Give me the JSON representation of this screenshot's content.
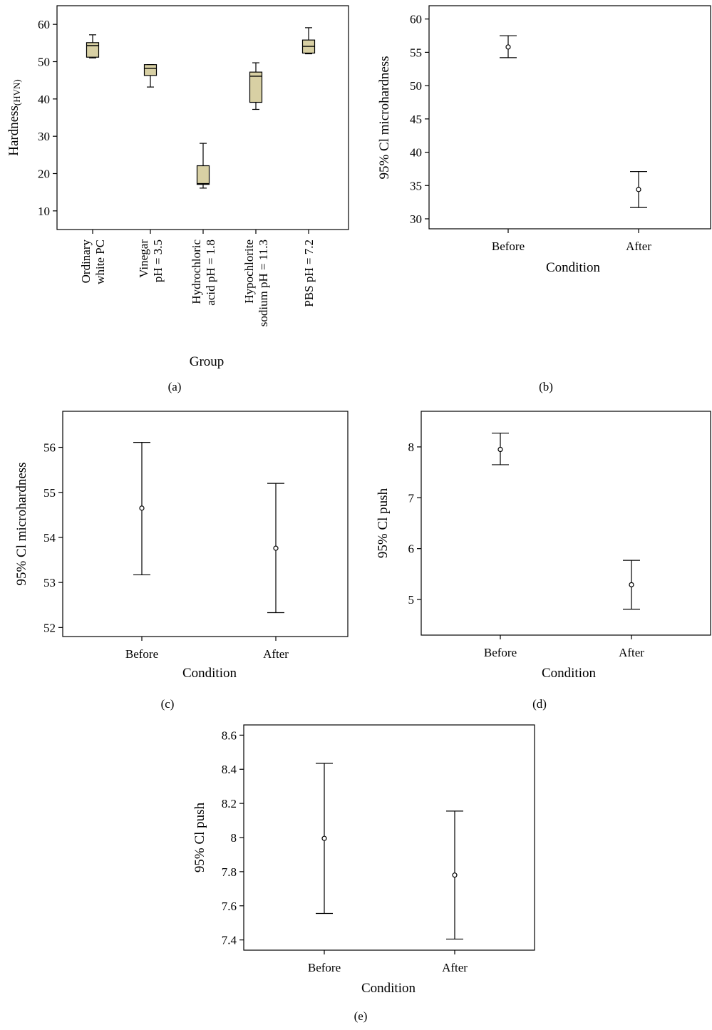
{
  "chart_data": [
    {
      "panel": "(a)",
      "type": "box",
      "xlabel": "Group",
      "ylabel_main": "Hardness",
      "ylabel_sub": "(HVN)",
      "ylim": [
        5,
        65
      ],
      "yticks": [
        10,
        20,
        30,
        40,
        50,
        60
      ],
      "categories": [
        [
          "Ordinary",
          "white PC"
        ],
        [
          "Vinegar",
          "pH = 3.5"
        ],
        [
          "Hydrochloric",
          "acid pH = 1.8"
        ],
        [
          "Hypochlorite",
          "sodium pH = 11.3"
        ],
        [
          "PBS pH = 7.2"
        ]
      ],
      "boxes": [
        {
          "min": 51,
          "q1": 51.2,
          "median": 54.3,
          "q3": 55.1,
          "max": 57.2
        },
        {
          "min": 43.2,
          "q1": 46.3,
          "median": 48.2,
          "q3": 49.2,
          "max": 49.2
        },
        {
          "min": 16.1,
          "q1": 17.1,
          "median": 17.3,
          "q3": 22.1,
          "max": 28.1
        },
        {
          "min": 37.2,
          "q1": 39.1,
          "median": 46.1,
          "q3": 47.2,
          "max": 49.7
        },
        {
          "min": 52.1,
          "q1": 52.3,
          "median": 54.1,
          "q3": 55.8,
          "max": 59.1
        }
      ],
      "box_color": "#d8d0a4"
    },
    {
      "panel": "(b)",
      "type": "errorbar",
      "xlabel": "Condition",
      "ylabel": "95% Cl microhardness",
      "ylim": [
        28.5,
        62
      ],
      "yticks": [
        30,
        35,
        40,
        45,
        50,
        55,
        60
      ],
      "categories": [
        "Before",
        "After"
      ],
      "means": [
        55.8,
        34.4
      ],
      "lower": [
        54.2,
        31.7
      ],
      "upper": [
        57.5,
        37.1
      ]
    },
    {
      "panel": "(c)",
      "type": "errorbar",
      "xlabel": "Condition",
      "ylabel": "95% Cl microhardness",
      "ylim": [
        51.8,
        56.8
      ],
      "yticks": [
        52,
        53,
        54,
        55,
        56
      ],
      "categories": [
        "Before",
        "After"
      ],
      "means": [
        54.65,
        53.76
      ],
      "lower": [
        53.17,
        52.33
      ],
      "upper": [
        56.11,
        55.2
      ]
    },
    {
      "panel": "(d)",
      "type": "errorbar",
      "xlabel": "Condition",
      "ylabel": "95% Cl push",
      "ylim": [
        4.3,
        8.7
      ],
      "yticks": [
        5,
        6,
        7,
        8
      ],
      "categories": [
        "Before",
        "After"
      ],
      "means": [
        7.95,
        5.29
      ],
      "lower": [
        7.65,
        4.81
      ],
      "upper": [
        8.27,
        5.77
      ]
    },
    {
      "panel": "(e)",
      "type": "errorbar",
      "xlabel": "Condition",
      "ylabel": "95% Cl push",
      "ylim": [
        7.34,
        8.66
      ],
      "yticks": [
        "7.4",
        "7.6",
        "7.8",
        "8",
        "8.2",
        "8.4",
        "8.6"
      ],
      "categories": [
        "Before",
        "After"
      ],
      "means": [
        7.995,
        7.78
      ],
      "lower": [
        7.555,
        7.405
      ],
      "upper": [
        8.435,
        8.155
      ]
    }
  ]
}
